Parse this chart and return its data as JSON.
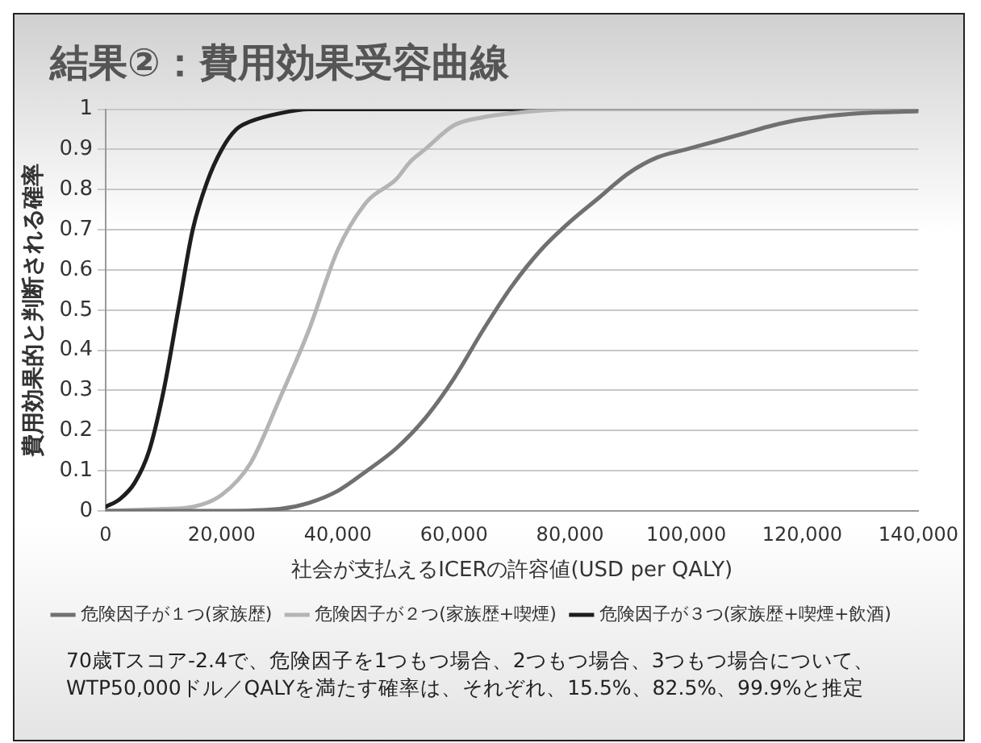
{
  "chart_data": {
    "type": "line",
    "title": "結果②：費用効果受容曲線",
    "xlabel": "社会が支払えるICERの許容値(USD per QALY)",
    "ylabel": "費用効果的と判断される確率",
    "series": [
      {
        "name": "危険因子が１つ(家族歴)",
        "color": "#707070",
        "x": [
          0,
          20000,
          30000,
          35000,
          40000,
          45000,
          50000,
          55000,
          60000,
          65000,
          70000,
          75000,
          80000,
          85000,
          90000,
          95000,
          100000,
          105000,
          110000,
          115000,
          120000,
          130000,
          140000
        ],
        "values": [
          0,
          0,
          0.005,
          0.02,
          0.05,
          0.1,
          0.155,
          0.23,
          0.33,
          0.45,
          0.56,
          0.65,
          0.72,
          0.78,
          0.84,
          0.88,
          0.9,
          0.92,
          0.94,
          0.96,
          0.975,
          0.99,
          0.995
        ]
      },
      {
        "name": "危険因子が２つ(家族歴+喫煙)",
        "color": "#b4b4b4",
        "x": [
          0,
          10000,
          15000,
          20000,
          25000,
          30000,
          35000,
          40000,
          45000,
          50000,
          52500,
          55000,
          60000,
          65000,
          70000,
          80000,
          140000
        ],
        "values": [
          0,
          0.005,
          0.01,
          0.04,
          0.12,
          0.28,
          0.45,
          0.65,
          0.77,
          0.825,
          0.87,
          0.9,
          0.96,
          0.98,
          0.99,
          1,
          1
        ]
      },
      {
        "name": "危険因子が３つ(家族歴+喫煙+飲酒)",
        "color": "#1e1e1e",
        "x": [
          0,
          2500,
          5000,
          7500,
          10000,
          12500,
          15000,
          17500,
          20000,
          22500,
          25000,
          30000,
          35000,
          140000
        ],
        "values": [
          0.01,
          0.03,
          0.07,
          0.15,
          0.3,
          0.5,
          0.7,
          0.82,
          0.9,
          0.95,
          0.97,
          0.99,
          1,
          1
        ]
      }
    ],
    "xlim": [
      0,
      140000
    ],
    "xticks": [
      {
        "value": 0,
        "label": "0"
      },
      {
        "value": 20000,
        "label": "20,000"
      },
      {
        "value": 40000,
        "label": "40,000"
      },
      {
        "value": 60000,
        "label": "60,000"
      },
      {
        "value": 80000,
        "label": "80,000"
      },
      {
        "value": 100000,
        "label": "100,000"
      },
      {
        "value": 120000,
        "label": "120,000"
      },
      {
        "value": 140000,
        "label": "140,000"
      }
    ],
    "ylim": [
      0,
      1
    ],
    "yticks": [
      0,
      0.1,
      0.2,
      0.3,
      0.4,
      0.5,
      0.6,
      0.7,
      0.8,
      0.9,
      1
    ],
    "grid": "y",
    "legend": "bottom",
    "marker": "none",
    "line_style": "solid",
    "annotations": [
      "70歳Tスコア-2.4で、危険因子を1つもつ場合、2つもつ場合、3つもつ場合について、",
      "WTP50,000ドル／QALYを満たす確率は、それぞれ、15.5%、82.5%、99.9%と推定"
    ]
  }
}
